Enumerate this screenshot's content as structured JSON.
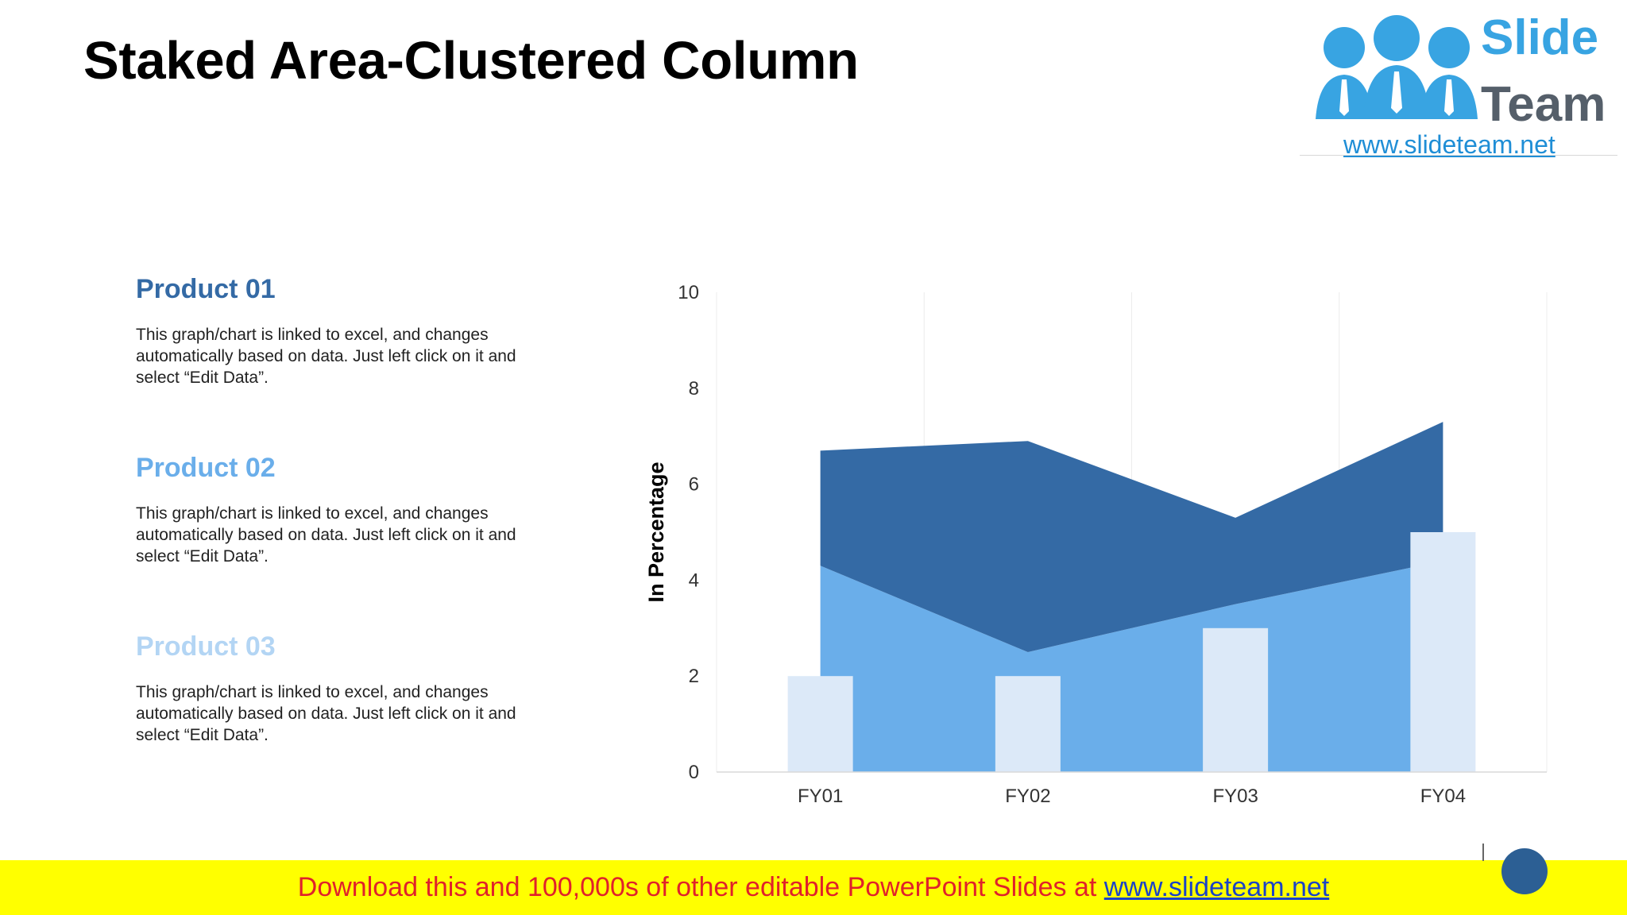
{
  "title": "Staked Area-Clustered Column",
  "logo": {
    "line1": "Slide",
    "line2": "Team",
    "url": "www.slideteam.net"
  },
  "products": [
    {
      "heading": "Product 01",
      "color": "#346aa5",
      "text": "This graph/chart is linked to excel, and changes automatically based on data. Just left click on it and select “Edit Data”."
    },
    {
      "heading": "Product 02",
      "color": "#6aaeea",
      "text": "This graph/chart is linked to excel, and changes automatically based on data. Just left click on it and select “Edit Data”."
    },
    {
      "heading": "Product 03",
      "color": "#b3d5f4",
      "text": "This graph/chart is linked to excel, and changes automatically based on data. Just left click on it and select “Edit Data”."
    }
  ],
  "chart_data": {
    "type": "area",
    "title": "",
    "xlabel": "",
    "ylabel": "In Percentage",
    "ylim": [
      0,
      10
    ],
    "yticks": [
      0,
      2,
      4,
      6,
      8,
      10
    ],
    "grid": "vertical",
    "legend": "none",
    "categories": [
      "FY01",
      "FY02",
      "FY03",
      "FY04"
    ],
    "series": [
      {
        "kind": "area",
        "color": "#6aaeea",
        "values": [
          4.3,
          2.5,
          3.5,
          4.4
        ]
      },
      {
        "kind": "area",
        "color": "#346aa5",
        "values": [
          2.4,
          4.4,
          1.8,
          2.9
        ]
      },
      {
        "kind": "column",
        "color": "#dce9f8",
        "values": [
          2,
          2,
          3,
          5
        ]
      }
    ]
  },
  "footer": {
    "text": "Download this and 100,000s of other editable PowerPoint Slides at ",
    "link": "www.slideteam.net"
  }
}
